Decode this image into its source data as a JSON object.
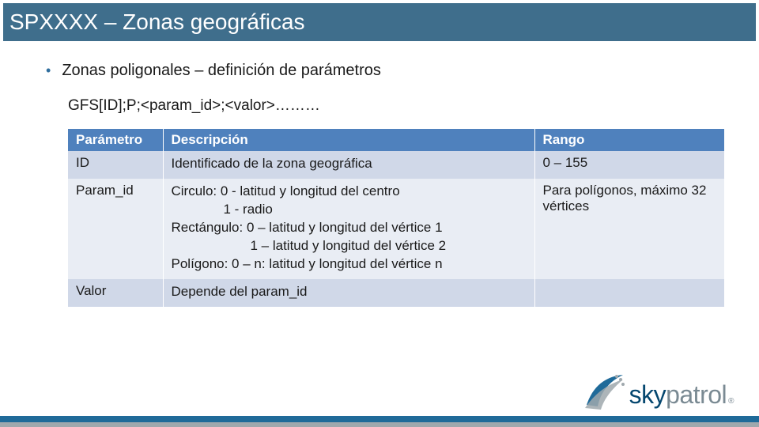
{
  "colors": {
    "titlebar_bg": "#3f6e8c",
    "accent_blue": "#2f6e9e",
    "th_bg": "#4f81bd",
    "row_odd_bg": "#d0d8e8",
    "row_even_bg": "#e9edf4",
    "logo_blue": "#05476f",
    "logo_gray": "#7a8a93",
    "band_blue": "#1f6a99",
    "band_gray": "#9fa8ad",
    "white": "#ffffff"
  },
  "title": "SPXXXX – Zonas geográficas",
  "bullet": "Zonas poligonales – definición de parámetros",
  "syntax": "GFS[ID];P;<param_id>;<valor>………",
  "table": {
    "columns": [
      "Parámetro",
      "Descripción",
      "Rango"
    ],
    "rows": [
      {
        "param": "ID",
        "desc": [
          "Identificado de la zona geográfica"
        ],
        "range": "0 – 155"
      },
      {
        "param": "Param_id",
        "desc": [
          "Circulo:  0 - latitud y longitud del centro",
          "__i1__1 - radio",
          "Rectángulo: 0 – latitud y longitud del vértice 1",
          "__i2__1 – latitud y longitud del vértice 2",
          "Polígono: 0 – n:  latitud y longitud del vértice n"
        ],
        "range": "Para polígonos, máximo 32 vértices"
      },
      {
        "param": "Valor",
        "desc": [
          "Depende del param_id"
        ],
        "range": ""
      }
    ]
  },
  "logo": {
    "part1": "sky",
    "part2": "patrol"
  }
}
